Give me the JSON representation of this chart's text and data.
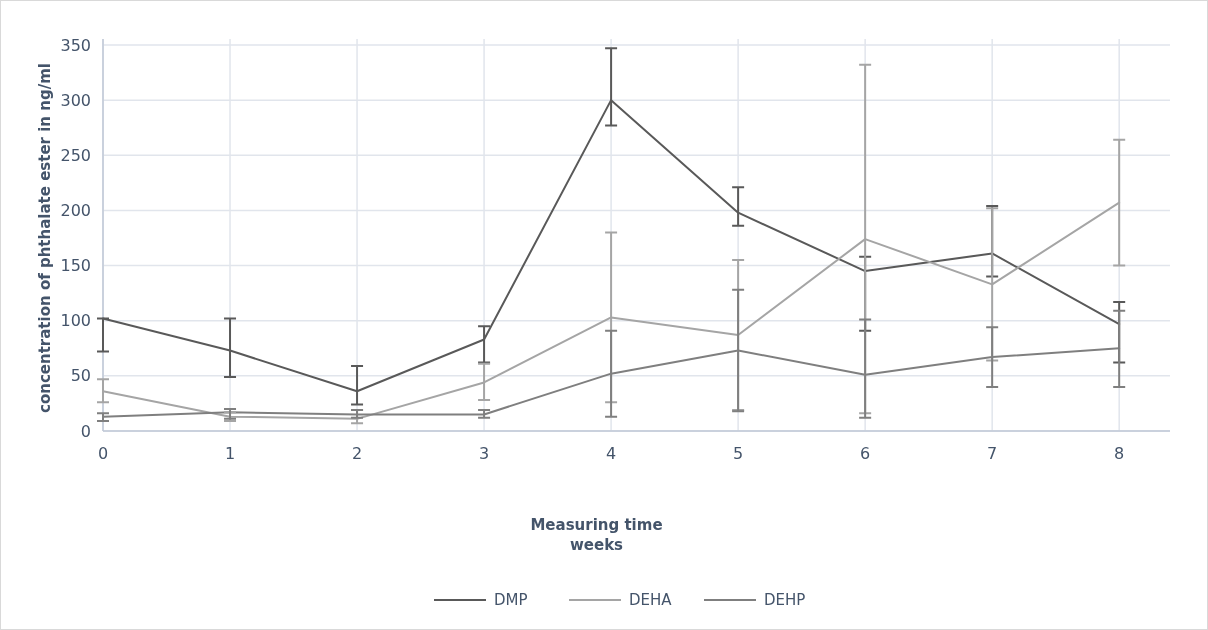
{
  "chart_data": {
    "type": "line",
    "xlabel": "Measuring time\nweeks",
    "ylabel": "concentration of phthalate ester  in ng/ml",
    "x": [
      0,
      1,
      2,
      3,
      4,
      5,
      6,
      7,
      8
    ],
    "xlim": [
      0,
      8.4
    ],
    "xticks": [
      0,
      1,
      2,
      3,
      4,
      5,
      6,
      7,
      8
    ],
    "ylim": [
      0,
      350
    ],
    "yticks": [
      0,
      50,
      100,
      150,
      200,
      250,
      300,
      350
    ],
    "grid": true,
    "legend": "bottom",
    "marker": "none",
    "line_style": "solid",
    "series": [
      {
        "name": "DMP",
        "color": "#595959",
        "values": [
          102,
          73,
          36,
          83,
          300,
          198,
          145,
          161,
          97
        ],
        "errors": [
          [
            72,
            102
          ],
          [
            49,
            102
          ],
          [
            24,
            59
          ],
          [
            62,
            95
          ],
          [
            277,
            347
          ],
          [
            186,
            221
          ],
          [
            91,
            158
          ],
          [
            140,
            204
          ],
          [
            62,
            117
          ]
        ]
      },
      {
        "name": "DEHA",
        "color": "#a5a5a5",
        "values": [
          36,
          13,
          11,
          44,
          103,
          87,
          174,
          133,
          207
        ],
        "errors": [
          [
            26,
            47
          ],
          [
            9,
            17
          ],
          [
            7,
            19
          ],
          [
            28,
            61
          ],
          [
            26,
            180
          ],
          [
            19,
            155
          ],
          [
            16,
            332
          ],
          [
            64,
            202
          ],
          [
            150,
            264
          ]
        ]
      },
      {
        "name": "DEHP",
        "color": "#7f7f7f",
        "values": [
          13,
          17,
          15,
          15,
          52,
          73,
          51,
          67,
          75
        ],
        "errors": [
          [
            9,
            16
          ],
          [
            11,
            20
          ],
          [
            12,
            19
          ],
          [
            12,
            19
          ],
          [
            13,
            91
          ],
          [
            18,
            128
          ],
          [
            12,
            101
          ],
          [
            40,
            94
          ],
          [
            40,
            109
          ]
        ]
      }
    ]
  }
}
